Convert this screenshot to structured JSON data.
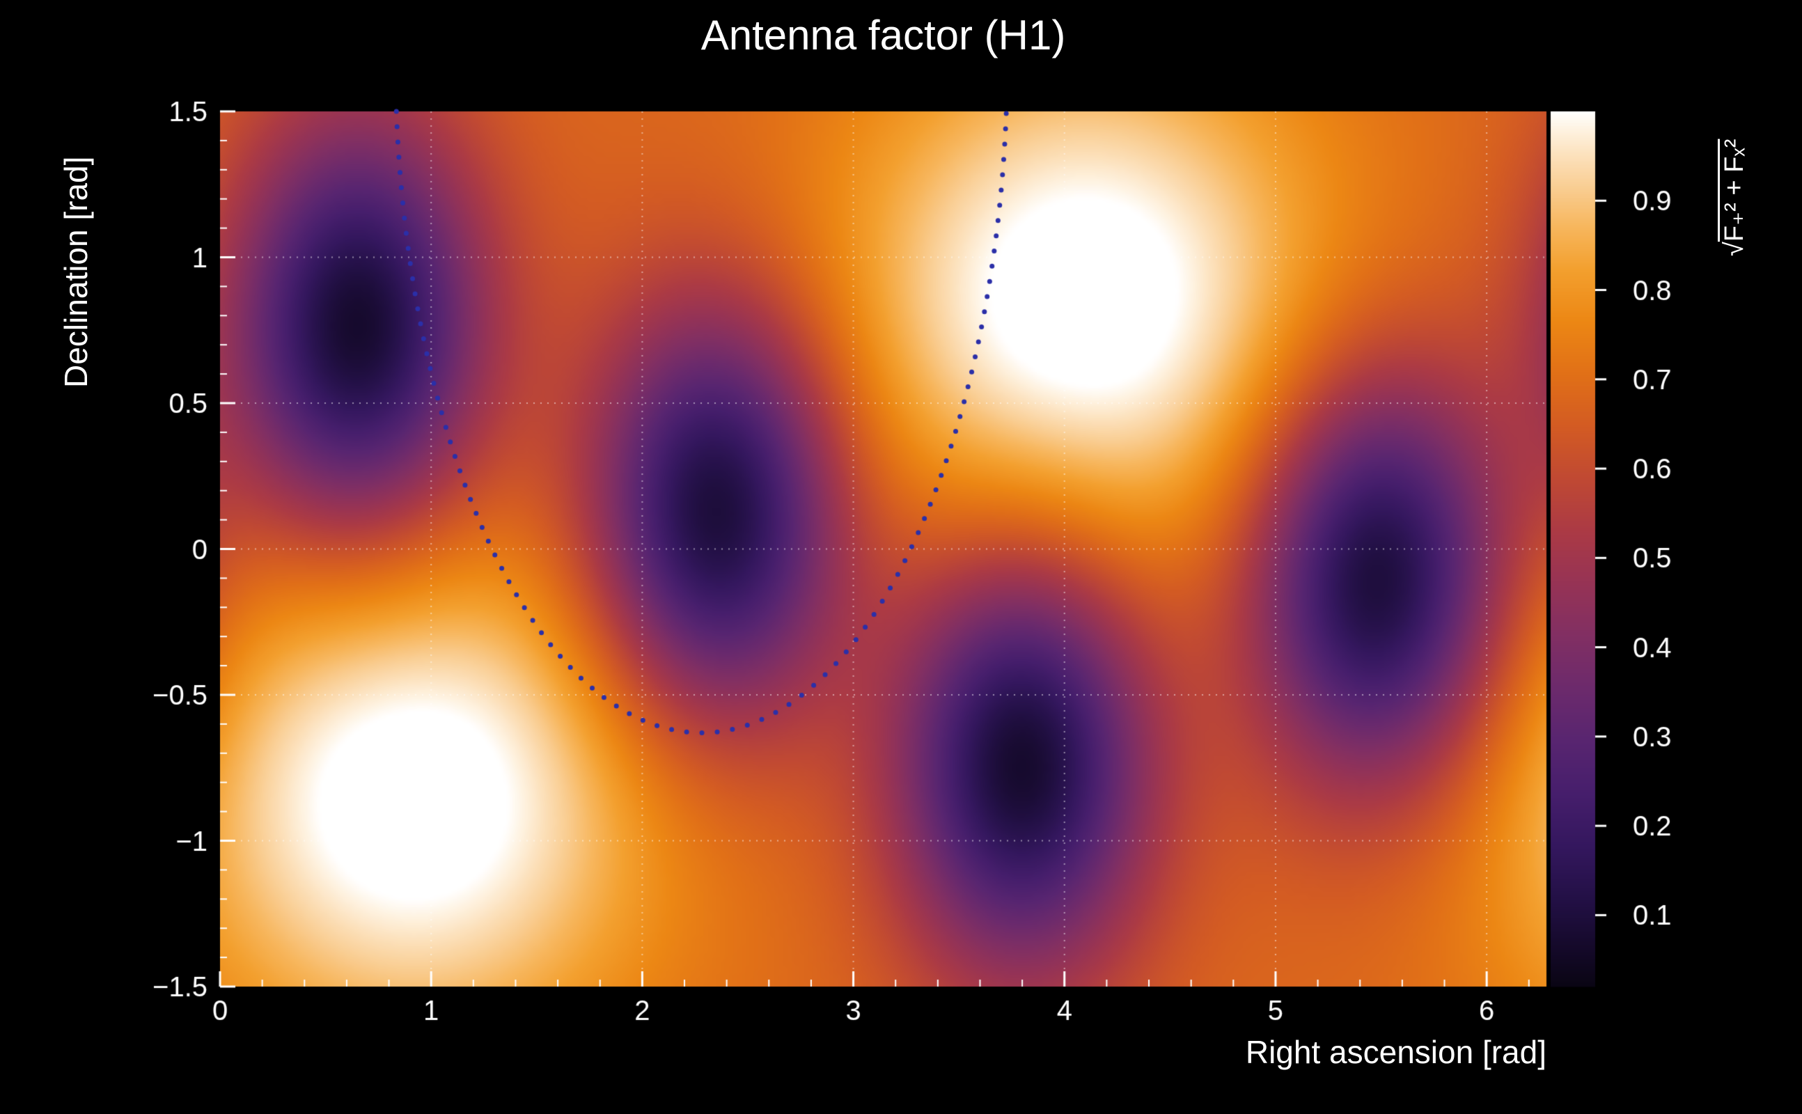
{
  "chart_data": {
    "type": "heatmap",
    "title": "Antenna factor (H1)",
    "xlabel": "Right ascension [rad]",
    "ylabel": "Declination [rad]",
    "zlabel": "√F₊² + Fₓ²",
    "x_range": [
      0,
      6.2832
    ],
    "y_range": [
      -1.5,
      1.5
    ],
    "z_range": [
      0.02,
      1.0
    ],
    "x_ticks": [
      0,
      1,
      2,
      3,
      4,
      5,
      6
    ],
    "x_tick_labels": [
      "0",
      "1",
      "2",
      "3",
      "4",
      "5",
      "6"
    ],
    "y_ticks": [
      -1.5,
      -1,
      -0.5,
      0,
      0.5,
      1,
      1.5
    ],
    "y_tick_labels": [
      "−1.5",
      "−1",
      "−0.5",
      "0",
      "0.5",
      "1",
      "1.5"
    ],
    "z_ticks": [
      0.1,
      0.2,
      0.3,
      0.4,
      0.5,
      0.6,
      0.7,
      0.8,
      0.9
    ],
    "z_tick_labels": [
      "0.1",
      "0.2",
      "0.3",
      "0.4",
      "0.5",
      "0.6",
      "0.7",
      "0.8",
      "0.9"
    ],
    "grid": true,
    "maxima": [
      {
        "x": 4.1,
        "y": 0.85,
        "z": 0.99
      },
      {
        "x": 0.92,
        "y": -0.85,
        "z": 0.99
      }
    ],
    "minima": [
      {
        "x": 0.65,
        "y": 0.75,
        "z": 0.06
      },
      {
        "x": 2.35,
        "y": 0.12,
        "z": 0.06
      },
      {
        "x": 3.8,
        "y": -0.73,
        "z": 0.06
      },
      {
        "x": 5.48,
        "y": -0.1,
        "z": 0.06
      }
    ],
    "field": {
      "base": 0.68,
      "blobs": [
        {
          "x": 0.65,
          "y": 0.75,
          "amp": -0.62,
          "sx": 0.42,
          "sy": 0.5
        },
        {
          "x": 2.35,
          "y": 0.12,
          "amp": -0.62,
          "sx": 0.42,
          "sy": 0.5
        },
        {
          "x": 3.8,
          "y": -0.73,
          "amp": -0.62,
          "sx": 0.42,
          "sy": 0.5
        },
        {
          "x": 5.48,
          "y": -0.1,
          "amp": -0.62,
          "sx": 0.42,
          "sy": 0.5
        },
        {
          "x": 4.1,
          "y": 0.85,
          "amp": 0.38,
          "sx": 0.8,
          "sy": 0.6
        },
        {
          "x": 0.92,
          "y": -0.85,
          "amp": 0.38,
          "sx": 0.8,
          "sy": 0.6
        }
      ]
    },
    "colormap": [
      [
        0.0,
        "#0a0514"
      ],
      [
        0.05,
        "#160a2d"
      ],
      [
        0.1,
        "#231046"
      ],
      [
        0.16,
        "#34175e"
      ],
      [
        0.22,
        "#461e6c"
      ],
      [
        0.28,
        "#582570"
      ],
      [
        0.34,
        "#6c2a6c"
      ],
      [
        0.4,
        "#812f63"
      ],
      [
        0.46,
        "#963355"
      ],
      [
        0.52,
        "#ab3a45"
      ],
      [
        0.58,
        "#c04933"
      ],
      [
        0.64,
        "#d35b23"
      ],
      [
        0.7,
        "#e17017"
      ],
      [
        0.76,
        "#ec8714"
      ],
      [
        0.82,
        "#f3a02f"
      ],
      [
        0.87,
        "#f7b75f"
      ],
      [
        0.91,
        "#f9cc8f"
      ],
      [
        0.95,
        "#fce1bc"
      ],
      [
        0.98,
        "#fef3e2"
      ],
      [
        1.0,
        "#ffffff"
      ]
    ],
    "overlay_curve": {
      "type": "ellipse-arc",
      "style": "dotted",
      "color": "#2b2fa8",
      "cx": 2.28,
      "cy": 1.7,
      "rx": 1.45,
      "ry": 2.33,
      "y_max": 1.5,
      "dot_radius": 3.5,
      "dot_spacing": 22
    }
  },
  "colorbar": {
    "radical": "√",
    "radicand": "F₊² + Fₓ²"
  },
  "text_color": "#ffffff",
  "background_color": "#000000"
}
